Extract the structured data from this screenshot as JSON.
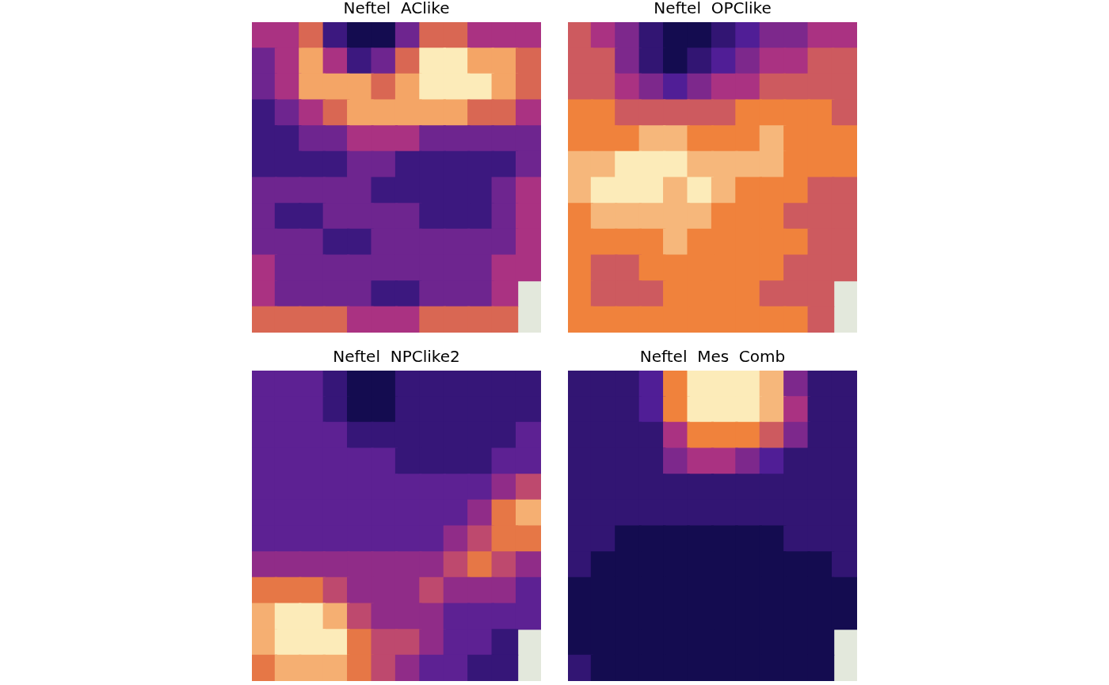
{
  "chart_data": [
    {
      "type": "heatmap",
      "title": "Neftel  AClike",
      "tick_labels": false,
      "grid": false,
      "x": [
        1,
        2,
        3,
        4,
        5,
        6,
        7,
        8,
        9,
        10,
        11,
        12
      ],
      "y": [
        12,
        11,
        10,
        9,
        8,
        7,
        6,
        5,
        4,
        3,
        2,
        1
      ],
      "xlim": [
        0.5,
        12.5
      ],
      "ylim": [
        0.5,
        12.5
      ],
      "cells": [
        [
          0.5,
          0.5,
          0.6,
          0.3,
          0.2,
          0.2,
          0.4,
          0.6,
          0.6,
          0.5,
          0.5,
          0.5
        ],
        [
          0.4,
          0.5,
          0.7,
          0.5,
          0.3,
          0.4,
          0.6,
          0.8,
          0.8,
          0.7,
          0.7,
          0.6
        ],
        [
          0.4,
          0.5,
          0.7,
          0.7,
          0.7,
          0.6,
          0.7,
          0.8,
          0.8,
          0.8,
          0.7,
          0.6
        ],
        [
          0.3,
          0.4,
          0.5,
          0.6,
          0.7,
          0.7,
          0.7,
          0.7,
          0.7,
          0.6,
          0.6,
          0.5
        ],
        [
          0.3,
          0.3,
          0.4,
          0.4,
          0.5,
          0.5,
          0.5,
          0.4,
          0.4,
          0.4,
          0.4,
          0.4
        ],
        [
          0.3,
          0.3,
          0.3,
          0.3,
          0.4,
          0.4,
          0.3,
          0.3,
          0.3,
          0.3,
          0.3,
          0.4
        ],
        [
          0.4,
          0.4,
          0.4,
          0.4,
          0.4,
          0.3,
          0.3,
          0.3,
          0.3,
          0.3,
          0.4,
          0.5
        ],
        [
          0.4,
          0.3,
          0.3,
          0.4,
          0.4,
          0.4,
          0.4,
          0.3,
          0.3,
          0.3,
          0.4,
          0.5
        ],
        [
          0.4,
          0.4,
          0.4,
          0.3,
          0.3,
          0.4,
          0.4,
          0.4,
          0.4,
          0.4,
          0.4,
          0.5
        ],
        [
          0.5,
          0.4,
          0.4,
          0.4,
          0.4,
          0.4,
          0.4,
          0.4,
          0.4,
          0.4,
          0.5,
          0.5
        ],
        [
          0.5,
          0.4,
          0.4,
          0.4,
          0.4,
          0.3,
          0.3,
          0.4,
          0.4,
          0.4,
          0.5,
          null
        ],
        [
          0.6,
          0.6,
          0.6,
          0.6,
          0.5,
          0.5,
          0.5,
          0.6,
          0.6,
          0.6,
          0.6,
          null
        ]
      ]
    },
    {
      "type": "heatmap",
      "title": "Neftel  OPClike",
      "tick_labels": false,
      "grid": false,
      "x": [
        1,
        2,
        3,
        4,
        5,
        6,
        7,
        8,
        9,
        10,
        11,
        12
      ],
      "y": [
        12,
        11,
        10,
        9,
        8,
        7,
        6,
        5,
        4,
        3,
        2,
        1
      ],
      "xlim": [
        0.5,
        12.5
      ],
      "ylim": [
        0.5,
        12.5
      ],
      "cells": [
        [
          0.6,
          0.5,
          0.4,
          0.2,
          0.1,
          0.1,
          0.2,
          0.3,
          0.4,
          0.4,
          0.5,
          0.5
        ],
        [
          0.6,
          0.6,
          0.4,
          0.2,
          0.1,
          0.2,
          0.3,
          0.4,
          0.5,
          0.5,
          0.6,
          0.6
        ],
        [
          0.6,
          0.6,
          0.5,
          0.4,
          0.3,
          0.4,
          0.5,
          0.5,
          0.6,
          0.6,
          0.6,
          0.6
        ],
        [
          0.7,
          0.7,
          0.6,
          0.6,
          0.6,
          0.6,
          0.6,
          0.7,
          0.7,
          0.7,
          0.7,
          0.6
        ],
        [
          0.7,
          0.7,
          0.7,
          0.8,
          0.8,
          0.7,
          0.7,
          0.7,
          0.8,
          0.7,
          0.7,
          0.7
        ],
        [
          0.8,
          0.8,
          0.9,
          0.9,
          0.9,
          0.8,
          0.8,
          0.8,
          0.8,
          0.7,
          0.7,
          0.7
        ],
        [
          0.8,
          0.9,
          0.9,
          0.9,
          0.8,
          0.9,
          0.8,
          0.7,
          0.7,
          0.7,
          0.6,
          0.6
        ],
        [
          0.7,
          0.8,
          0.8,
          0.8,
          0.8,
          0.8,
          0.7,
          0.7,
          0.7,
          0.6,
          0.6,
          0.6
        ],
        [
          0.7,
          0.7,
          0.7,
          0.7,
          0.8,
          0.7,
          0.7,
          0.7,
          0.7,
          0.7,
          0.6,
          0.6
        ],
        [
          0.7,
          0.6,
          0.6,
          0.7,
          0.7,
          0.7,
          0.7,
          0.7,
          0.7,
          0.6,
          0.6,
          0.6
        ],
        [
          0.7,
          0.6,
          0.6,
          0.6,
          0.7,
          0.7,
          0.7,
          0.7,
          0.6,
          0.6,
          0.6,
          null
        ],
        [
          0.7,
          0.7,
          0.7,
          0.7,
          0.7,
          0.7,
          0.7,
          0.7,
          0.7,
          0.7,
          0.6,
          null
        ]
      ]
    },
    {
      "type": "heatmap",
      "title": "Neftel  NPClike2",
      "tick_labels": false,
      "grid": false,
      "x": [
        1,
        2,
        3,
        4,
        5,
        6,
        7,
        8,
        9,
        10,
        11,
        12
      ],
      "y": [
        12,
        11,
        10,
        9,
        8,
        7,
        6,
        5,
        4,
        3,
        2,
        1
      ],
      "xlim": [
        0.5,
        12.5
      ],
      "ylim": [
        0.5,
        12.5
      ],
      "cells": [
        [
          0.3,
          0.3,
          0.3,
          0.2,
          0.1,
          0.1,
          0.2,
          0.2,
          0.2,
          0.2,
          0.2,
          0.2
        ],
        [
          0.3,
          0.3,
          0.3,
          0.2,
          0.1,
          0.1,
          0.2,
          0.2,
          0.2,
          0.2,
          0.2,
          0.2
        ],
        [
          0.3,
          0.3,
          0.3,
          0.3,
          0.2,
          0.2,
          0.2,
          0.2,
          0.2,
          0.2,
          0.2,
          0.3
        ],
        [
          0.3,
          0.3,
          0.3,
          0.3,
          0.3,
          0.3,
          0.2,
          0.2,
          0.2,
          0.2,
          0.3,
          0.3
        ],
        [
          0.3,
          0.3,
          0.3,
          0.3,
          0.3,
          0.3,
          0.3,
          0.3,
          0.3,
          0.3,
          0.4,
          0.5
        ],
        [
          0.3,
          0.3,
          0.3,
          0.3,
          0.3,
          0.3,
          0.3,
          0.3,
          0.3,
          0.4,
          0.6,
          0.7
        ],
        [
          0.3,
          0.3,
          0.3,
          0.3,
          0.3,
          0.3,
          0.3,
          0.3,
          0.4,
          0.5,
          0.6,
          0.6
        ],
        [
          0.4,
          0.4,
          0.4,
          0.4,
          0.4,
          0.4,
          0.4,
          0.4,
          0.5,
          0.6,
          0.5,
          0.4
        ],
        [
          0.6,
          0.6,
          0.6,
          0.5,
          0.4,
          0.4,
          0.4,
          0.5,
          0.4,
          0.4,
          0.4,
          0.3
        ],
        [
          0.7,
          0.8,
          0.8,
          0.7,
          0.5,
          0.4,
          0.4,
          0.4,
          0.3,
          0.3,
          0.3,
          0.3
        ],
        [
          0.7,
          0.8,
          0.8,
          0.8,
          0.6,
          0.5,
          0.5,
          0.4,
          0.3,
          0.3,
          0.2,
          null
        ],
        [
          0.6,
          0.7,
          0.7,
          0.7,
          0.6,
          0.5,
          0.4,
          0.3,
          0.3,
          0.2,
          0.2,
          null
        ]
      ]
    },
    {
      "type": "heatmap",
      "title": "Neftel  Mes  Comb",
      "tick_labels": false,
      "grid": false,
      "x": [
        1,
        2,
        3,
        4,
        5,
        6,
        7,
        8,
        9,
        10,
        11,
        12
      ],
      "y": [
        12,
        11,
        10,
        9,
        8,
        7,
        6,
        5,
        4,
        3,
        2,
        1
      ],
      "xlim": [
        0.5,
        12.5
      ],
      "ylim": [
        0.5,
        12.5
      ],
      "cells": [
        [
          0.2,
          0.2,
          0.2,
          0.3,
          0.7,
          0.9,
          0.9,
          0.9,
          0.8,
          0.4,
          0.2,
          0.2
        ],
        [
          0.2,
          0.2,
          0.2,
          0.3,
          0.7,
          0.9,
          0.9,
          0.9,
          0.8,
          0.5,
          0.2,
          0.2
        ],
        [
          0.2,
          0.2,
          0.2,
          0.2,
          0.5,
          0.7,
          0.7,
          0.7,
          0.6,
          0.4,
          0.2,
          0.2
        ],
        [
          0.2,
          0.2,
          0.2,
          0.2,
          0.4,
          0.5,
          0.5,
          0.4,
          0.3,
          0.2,
          0.2,
          0.2
        ],
        [
          0.2,
          0.2,
          0.2,
          0.2,
          0.2,
          0.2,
          0.2,
          0.2,
          0.2,
          0.2,
          0.2,
          0.2
        ],
        [
          0.2,
          0.2,
          0.2,
          0.2,
          0.2,
          0.2,
          0.2,
          0.2,
          0.2,
          0.2,
          0.2,
          0.2
        ],
        [
          0.2,
          0.2,
          0.1,
          0.1,
          0.1,
          0.1,
          0.1,
          0.1,
          0.1,
          0.2,
          0.2,
          0.2
        ],
        [
          0.2,
          0.1,
          0.1,
          0.1,
          0.1,
          0.1,
          0.1,
          0.1,
          0.1,
          0.1,
          0.1,
          0.2
        ],
        [
          0.1,
          0.1,
          0.1,
          0.1,
          0.1,
          0.1,
          0.1,
          0.1,
          0.1,
          0.1,
          0.1,
          0.1
        ],
        [
          0.1,
          0.1,
          0.1,
          0.1,
          0.1,
          0.1,
          0.1,
          0.1,
          0.1,
          0.1,
          0.1,
          0.1
        ],
        [
          0.1,
          0.1,
          0.1,
          0.1,
          0.1,
          0.1,
          0.1,
          0.1,
          0.1,
          0.1,
          0.1,
          null
        ],
        [
          0.2,
          0.1,
          0.1,
          0.1,
          0.1,
          0.1,
          0.1,
          0.1,
          0.1,
          0.1,
          0.1,
          null
        ]
      ]
    }
  ]
}
